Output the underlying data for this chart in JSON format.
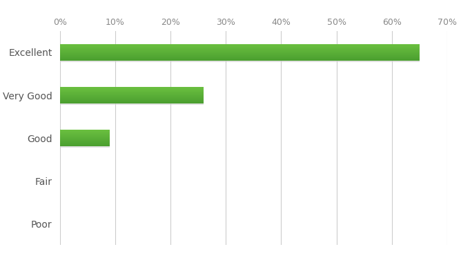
{
  "categories": [
    "Excellent",
    "Very Good",
    "Good",
    "Fair",
    "Poor"
  ],
  "values": [
    65,
    26,
    9,
    0,
    0
  ],
  "bar_color_top": "#6abf3f",
  "bar_color_bottom": "#4a9e2f",
  "background_color": "#ffffff",
  "grid_color": "#cccccc",
  "tick_label_color": "#888888",
  "ylabel_color": "#555555",
  "xlim": [
    0,
    70
  ],
  "xticks": [
    0,
    10,
    20,
    30,
    40,
    50,
    60,
    70
  ],
  "bar_height": 0.38,
  "figsize": [
    6.68,
    3.74
  ],
  "dpi": 100
}
